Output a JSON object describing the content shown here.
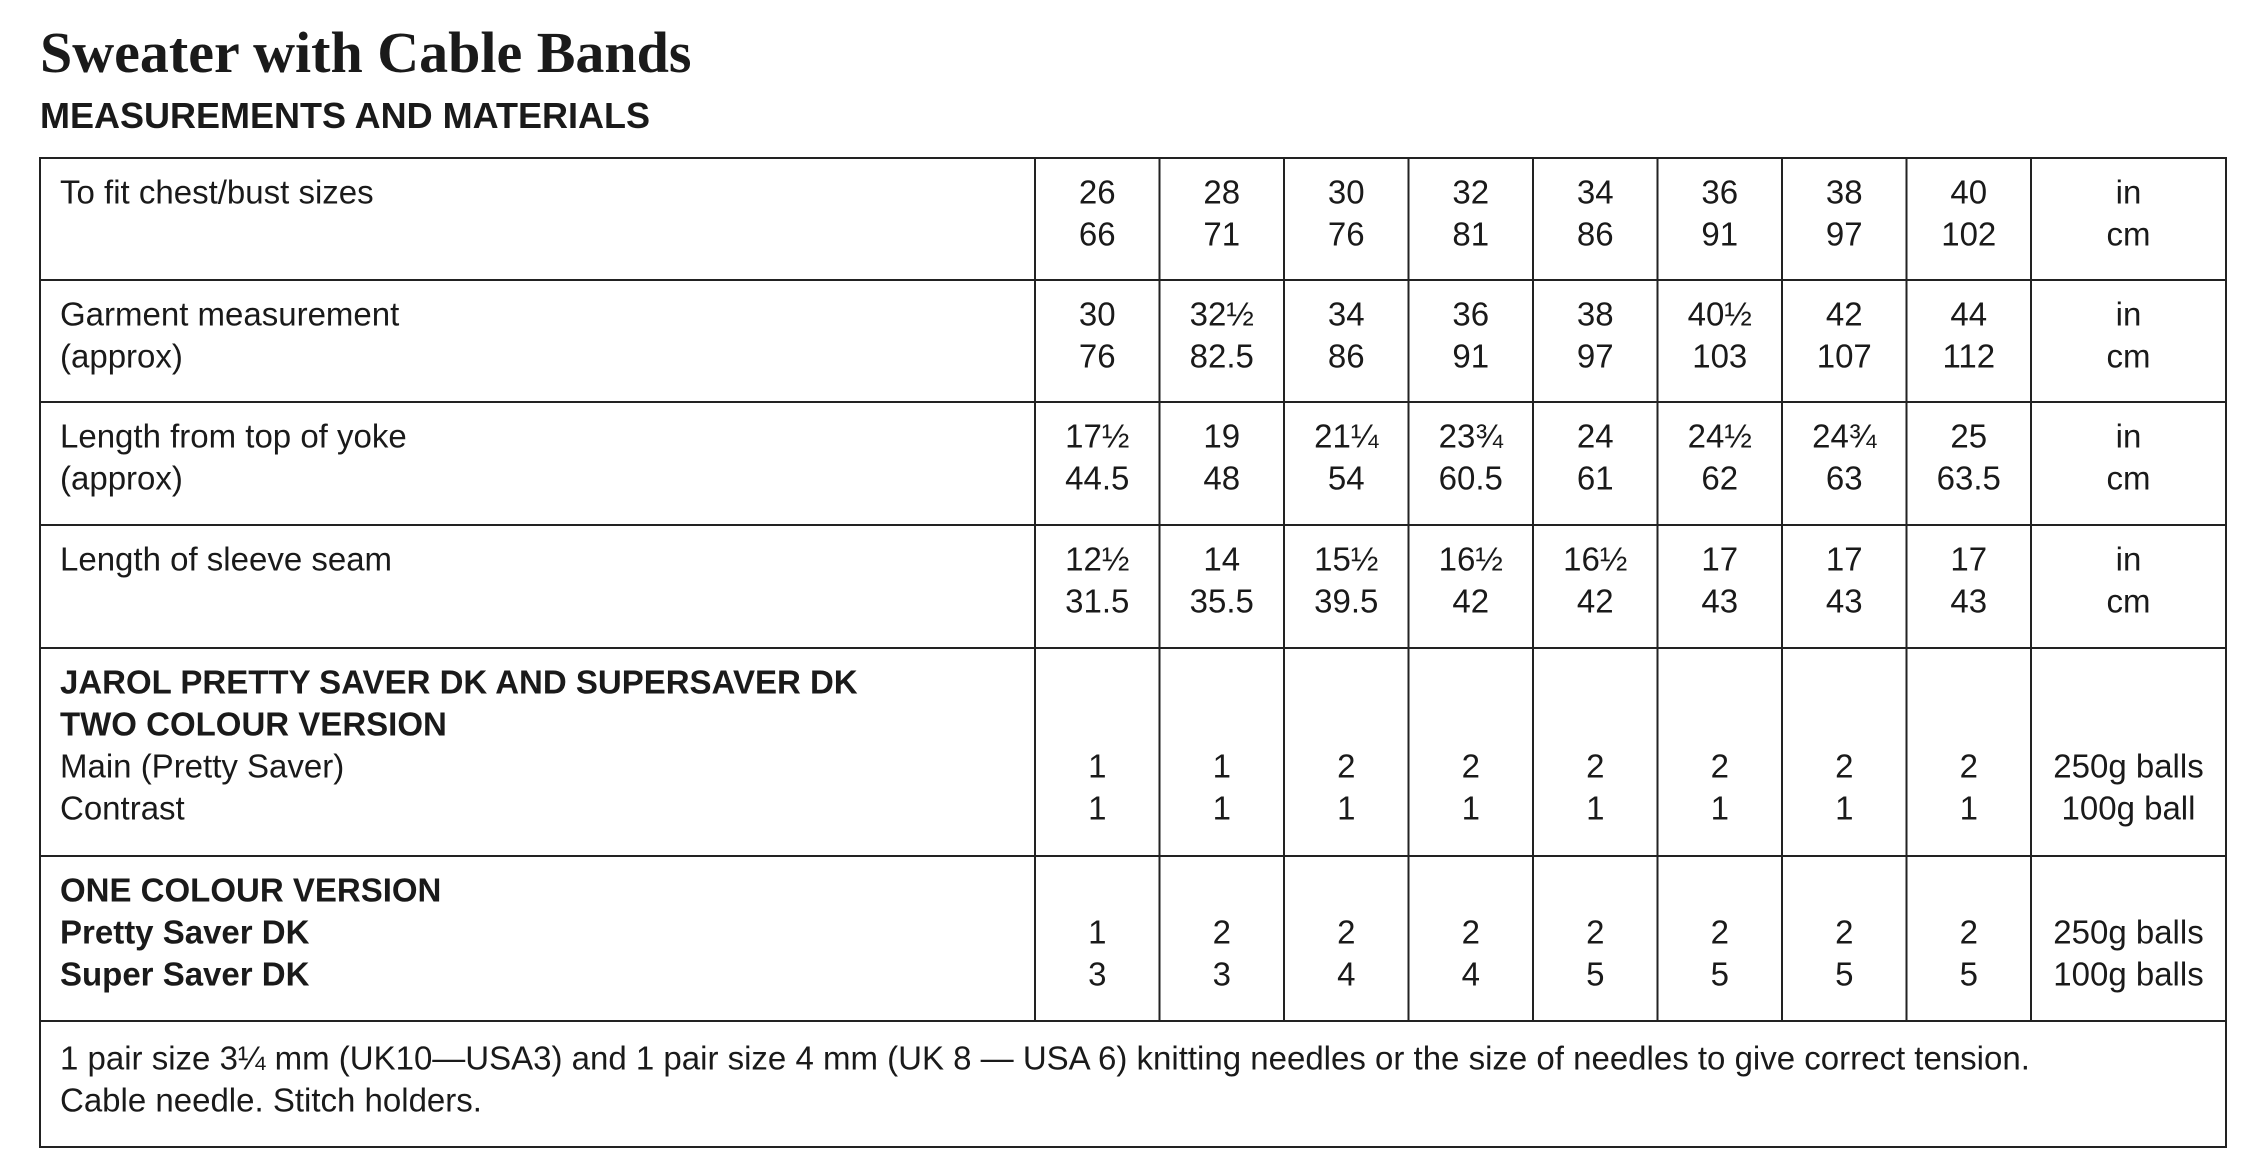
{
  "header": {
    "title": "Sweater with Cable Bands",
    "subtitle": "MEASUREMENTS AND MATERIALS"
  },
  "table": {
    "rows": [
      {
        "label": [
          "To fit chest/bust sizes"
        ],
        "values": [
          [
            "26",
            "66"
          ],
          [
            "28",
            "71"
          ],
          [
            "30",
            "76"
          ],
          [
            "32",
            "81"
          ],
          [
            "34",
            "86"
          ],
          [
            "36",
            "91"
          ],
          [
            "38",
            "97"
          ],
          [
            "40",
            "102"
          ]
        ],
        "unit": [
          "in",
          "cm"
        ]
      },
      {
        "label": [
          "Garment measurement",
          "(approx)"
        ],
        "values": [
          [
            "30",
            "76"
          ],
          [
            "32½",
            "82.5"
          ],
          [
            "34",
            "86"
          ],
          [
            "36",
            "91"
          ],
          [
            "38",
            "97"
          ],
          [
            "40½",
            "103"
          ],
          [
            "42",
            "107"
          ],
          [
            "44",
            "112"
          ]
        ],
        "unit": [
          "in",
          "cm"
        ]
      },
      {
        "label": [
          "Length from top of yoke",
          "(approx)"
        ],
        "values": [
          [
            "17½",
            "44.5"
          ],
          [
            "19",
            "48"
          ],
          [
            "21¼",
            "54"
          ],
          [
            "23¾",
            "60.5"
          ],
          [
            "24",
            "61"
          ],
          [
            "24½",
            "62"
          ],
          [
            "24¾",
            "63"
          ],
          [
            "25",
            "63.5"
          ]
        ],
        "unit": [
          "in",
          "cm"
        ]
      },
      {
        "label": [
          "Length of sleeve seam"
        ],
        "values": [
          [
            "12½",
            "31.5"
          ],
          [
            "14",
            "35.5"
          ],
          [
            "15½",
            "39.5"
          ],
          [
            "16½",
            "42"
          ],
          [
            "16½",
            "42"
          ],
          [
            "17",
            "43"
          ],
          [
            "17",
            "43"
          ],
          [
            "17",
            "43"
          ]
        ],
        "unit": [
          "in",
          "cm"
        ]
      },
      {
        "label": [
          "JAROL PRETTY SAVER DK AND SUPERSAVER DK",
          "TWO COLOUR VERSION",
          "Main (Pretty Saver)",
          "Contrast"
        ],
        "values": [
          [
            "1",
            "1"
          ],
          [
            "1",
            "1"
          ],
          [
            "2",
            "1"
          ],
          [
            "2",
            "1"
          ],
          [
            "2",
            "1"
          ],
          [
            "2",
            "1"
          ],
          [
            "2",
            "1"
          ],
          [
            "2",
            "1"
          ]
        ],
        "unit": [
          "250g balls",
          "100g ball"
        ]
      },
      {
        "label": [
          "ONE COLOUR VERSION",
          "Pretty Saver DK",
          "Super Saver DK"
        ],
        "values": [
          [
            "1",
            "3"
          ],
          [
            "2",
            "3"
          ],
          [
            "2",
            "4"
          ],
          [
            "2",
            "4"
          ],
          [
            "2",
            "5"
          ],
          [
            "2",
            "5"
          ],
          [
            "2",
            "5"
          ],
          [
            "2",
            "5"
          ]
        ],
        "unit": [
          "250g balls",
          "100g balls"
        ]
      }
    ],
    "footer": [
      "1 pair size 3¼ mm (UK10—USA3) and 1 pair size 4 mm (UK 8 — USA 6) knitting needles or the size of needles to give correct tension.",
      "Cable needle. Stitch holders."
    ]
  }
}
